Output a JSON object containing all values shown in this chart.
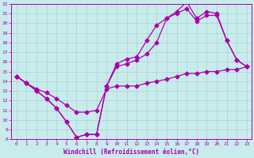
{
  "xlabel": "Windchill (Refroidissement éolien,°C)",
  "bg_color": "#c8ecec",
  "line_color": "#aa00aa",
  "grid_color": "#b0cece",
  "xlim": [
    -0.5,
    23.5
  ],
  "ylim": [
    8,
    22
  ],
  "yticks": [
    8,
    9,
    10,
    11,
    12,
    13,
    14,
    15,
    16,
    17,
    18,
    19,
    20,
    21,
    22
  ],
  "xticks": [
    0,
    1,
    2,
    3,
    4,
    5,
    6,
    7,
    8,
    9,
    10,
    11,
    12,
    13,
    14,
    15,
    16,
    17,
    18,
    19,
    20,
    21,
    22,
    23
  ],
  "line1_x": [
    0,
    1,
    2,
    3,
    4,
    5,
    6,
    7,
    8,
    9,
    10,
    11,
    12,
    13,
    14,
    15,
    16,
    17,
    18,
    19,
    20,
    21,
    22,
    23
  ],
  "line1_y": [
    14.5,
    13.8,
    13.0,
    12.2,
    11.2,
    9.8,
    8.2,
    8.5,
    8.5,
    13.5,
    15.8,
    16.3,
    16.5,
    18.2,
    19.8,
    20.5,
    21.2,
    22.2,
    20.5,
    21.2,
    21.0,
    18.2,
    16.2,
    15.5
  ],
  "line2_x": [
    0,
    1,
    2,
    3,
    4,
    5,
    6,
    7,
    8,
    9,
    10,
    11,
    12,
    13,
    14,
    15,
    16,
    17,
    18,
    19,
    20,
    21,
    22,
    23
  ],
  "line2_y": [
    14.5,
    13.8,
    13.0,
    12.2,
    11.2,
    9.8,
    8.2,
    8.5,
    8.5,
    13.5,
    15.5,
    15.8,
    16.2,
    16.8,
    18.0,
    20.5,
    21.0,
    21.5,
    20.2,
    20.8,
    20.8,
    18.2,
    16.2,
    15.5
  ],
  "line3_x": [
    0,
    1,
    2,
    3,
    4,
    5,
    6,
    7,
    8,
    9,
    10,
    11,
    12,
    13,
    14,
    15,
    16,
    17,
    18,
    19,
    20,
    21,
    22,
    23
  ],
  "line3_y": [
    14.5,
    13.8,
    13.2,
    12.8,
    12.2,
    11.5,
    10.8,
    10.8,
    11.0,
    13.2,
    13.5,
    13.5,
    13.5,
    13.8,
    14.0,
    14.2,
    14.5,
    14.8,
    14.8,
    15.0,
    15.0,
    15.2,
    15.2,
    15.5
  ],
  "markersize": 2.5,
  "linewidth": 0.9
}
